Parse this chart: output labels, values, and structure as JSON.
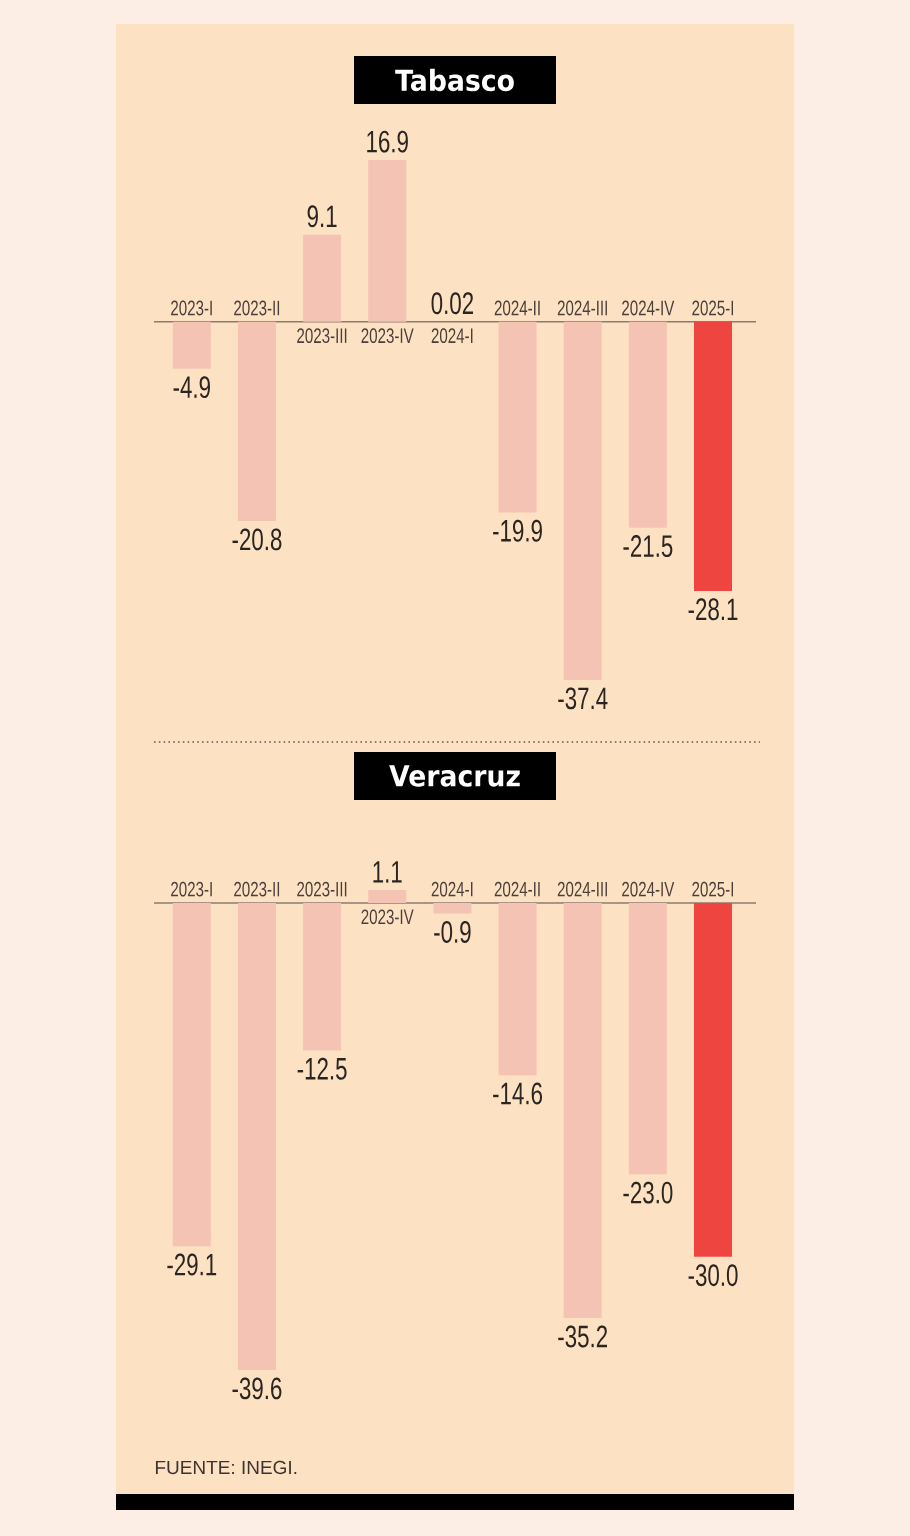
{
  "chart_data": [
    {
      "type": "bar",
      "title": "Tabasco",
      "categories": [
        "2023-I",
        "2023-II",
        "2023-III",
        "2023-IV",
        "2024-I",
        "2024-II",
        "2024-III",
        "2024-IV",
        "2025-I"
      ],
      "values": [
        -4.9,
        -20.8,
        9.1,
        16.9,
        0.02,
        -19.9,
        -37.4,
        -21.5,
        -28.1
      ],
      "colors": [
        "#f4c3b3",
        "#f4c3b3",
        "#f4c3b3",
        "#f4c3b3",
        "#f4c3b3",
        "#f4c3b3",
        "#f4c3b3",
        "#f4c3b3",
        "#ee4540"
      ],
      "data_labels": true
    },
    {
      "type": "bar",
      "title": "Veracruz",
      "categories": [
        "2023-I",
        "2023-II",
        "2023-III",
        "2023-IV",
        "2024-I",
        "2024-II",
        "2024-III",
        "2024-IV",
        "2025-I"
      ],
      "values": [
        -29.1,
        -39.6,
        -12.5,
        1.1,
        -0.9,
        -14.6,
        -35.2,
        -23.0,
        -30.0
      ],
      "value_labels": [
        "-29.1",
        "-39.6",
        "-12.5",
        "1.1",
        "-0.9",
        "-14.6",
        "-35.2",
        "-23.0",
        "-30.0"
      ],
      "colors": [
        "#f4c3b3",
        "#f4c3b3",
        "#f4c3b3",
        "#f4c3b3",
        "#f4c3b3",
        "#f4c3b3",
        "#f4c3b3",
        "#f4c3b3",
        "#ee4540"
      ],
      "annotations": [
        "FUENTE: INEGI."
      ]
    }
  ]
}
